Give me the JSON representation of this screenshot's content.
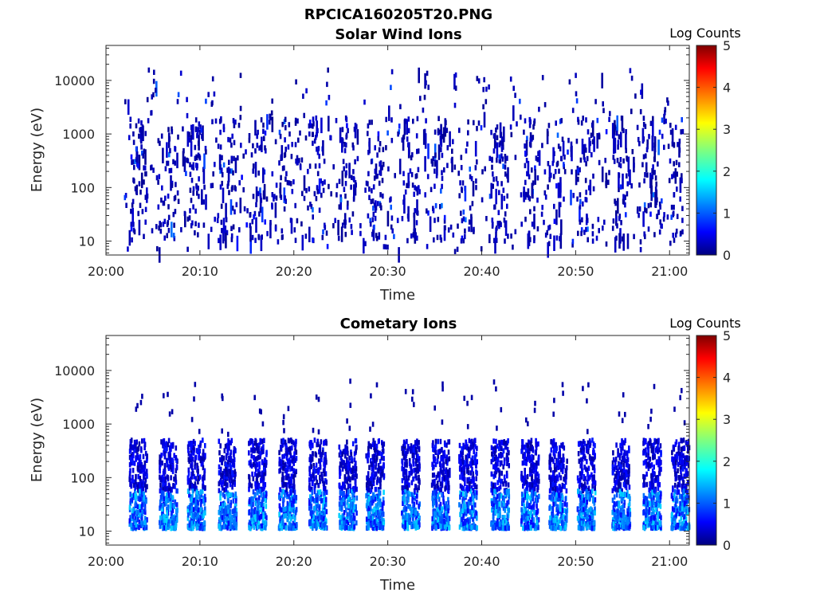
{
  "figure_title": "RPCICA160205T20.PNG",
  "chart_data": [
    {
      "type": "heatmap",
      "title": "Solar Wind Ions",
      "xlabel": "Time",
      "ylabel": "Energy (eV)",
      "y_scale": "log",
      "ylim": [
        5.5,
        45000
      ],
      "xlim": [
        "20:00",
        "21:02"
      ],
      "x_ticks": [
        "20:00",
        "20:10",
        "20:20",
        "20:30",
        "20:40",
        "20:50",
        "21:00"
      ],
      "y_ticks": [
        "10",
        "100",
        "1000",
        "10000"
      ],
      "colorbar": {
        "label": "Log Counts",
        "range": [
          0,
          5
        ],
        "ticks": [
          "0",
          "1",
          "2",
          "3",
          "4",
          "5"
        ],
        "colormap": "jet"
      },
      "description_level": "sparse scattered counts mostly 0-0.5 log counts across 10 eV - 15 keV, bursts roughly every 2.5 minutes"
    },
    {
      "type": "heatmap",
      "title": "Cometary Ions",
      "xlabel": "Time",
      "ylabel": "Energy (eV)",
      "y_scale": "log",
      "ylim": [
        5.5,
        45000
      ],
      "xlim": [
        "20:00",
        "21:02"
      ],
      "x_ticks": [
        "20:00",
        "20:10",
        "20:20",
        "20:30",
        "20:40",
        "20:50",
        "21:00"
      ],
      "y_ticks": [
        "10",
        "100",
        "1000",
        "10000"
      ],
      "colorbar": {
        "label": "Log Counts",
        "range": [
          0,
          5
        ],
        "ticks": [
          "0",
          "1",
          "2",
          "3",
          "4",
          "5"
        ],
        "colormap": "jet"
      },
      "description_level": "periodic bursts every ~2.5 minutes between 10 and 500 eV, peaking ~1.5 log counts near 20-40 eV"
    }
  ],
  "bursts_minutes": [
    3.3,
    6.5,
    9.5,
    12.8,
    16.0,
    19.2,
    22.4,
    25.6,
    28.5,
    32.3,
    35.5,
    38.4,
    41.8,
    45.0,
    48.0,
    51.0,
    54.7,
    58.0,
    61.0
  ]
}
